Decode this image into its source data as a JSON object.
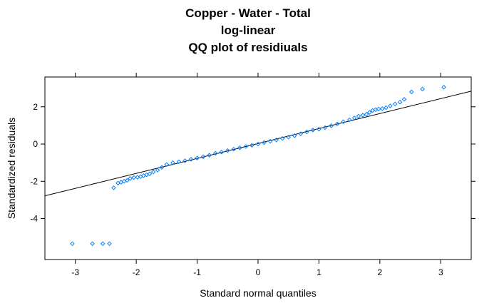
{
  "chart_data": {
    "type": "scatter",
    "title_lines": [
      "Copper - Water - Total",
      "log-linear",
      "QQ plot of residiuals"
    ],
    "xlabel": "Standard normal quantiles",
    "ylabel": "Standardized residuals",
    "xlim": [
      -3.5,
      3.5
    ],
    "ylim": [
      -6.2,
      3.6
    ],
    "xticks": [
      -3,
      -2,
      -1,
      0,
      1,
      2,
      3
    ],
    "yticks": [
      -4,
      -2,
      0,
      2
    ],
    "point_color": "#0080ff",
    "reference_line": {
      "x": [
        -3.5,
        3.5
      ],
      "y": [
        -2.78,
        2.84
      ]
    },
    "points": {
      "x": [
        -3.05,
        -2.72,
        -2.55,
        -2.44,
        -2.37,
        -2.3,
        -2.25,
        -2.2,
        -2.15,
        -2.1,
        -2.04,
        -1.98,
        -1.93,
        -1.88,
        -1.83,
        -1.78,
        -1.72,
        -1.65,
        -1.58,
        -1.5,
        -1.4,
        -1.3,
        -1.2,
        -1.1,
        -1.0,
        -0.9,
        -0.8,
        -0.7,
        -0.6,
        -0.5,
        -0.4,
        -0.3,
        -0.2,
        -0.1,
        0.0,
        0.1,
        0.2,
        0.3,
        0.4,
        0.5,
        0.6,
        0.7,
        0.8,
        0.9,
        1.0,
        1.1,
        1.2,
        1.3,
        1.4,
        1.5,
        1.58,
        1.65,
        1.72,
        1.78,
        1.83,
        1.88,
        1.93,
        1.98,
        2.04,
        2.1,
        2.17,
        2.25,
        2.33,
        2.4,
        2.52,
        2.7,
        3.05
      ],
      "y": [
        -5.35,
        -5.35,
        -5.35,
        -5.35,
        -2.35,
        -2.1,
        -2.05,
        -2.0,
        -1.95,
        -1.85,
        -1.8,
        -1.78,
        -1.75,
        -1.7,
        -1.65,
        -1.6,
        -1.5,
        -1.4,
        -1.25,
        -1.1,
        -1.0,
        -0.95,
        -0.9,
        -0.82,
        -0.75,
        -0.68,
        -0.6,
        -0.5,
        -0.43,
        -0.35,
        -0.28,
        -0.2,
        -0.13,
        -0.07,
        0.0,
        0.08,
        0.15,
        0.22,
        0.3,
        0.37,
        0.45,
        0.55,
        0.65,
        0.75,
        0.8,
        0.88,
        0.98,
        1.08,
        1.2,
        1.3,
        1.4,
        1.5,
        1.55,
        1.6,
        1.7,
        1.8,
        1.85,
        1.88,
        1.9,
        1.95,
        2.05,
        2.15,
        2.25,
        2.4,
        2.8,
        2.95,
        3.05
      ]
    }
  }
}
